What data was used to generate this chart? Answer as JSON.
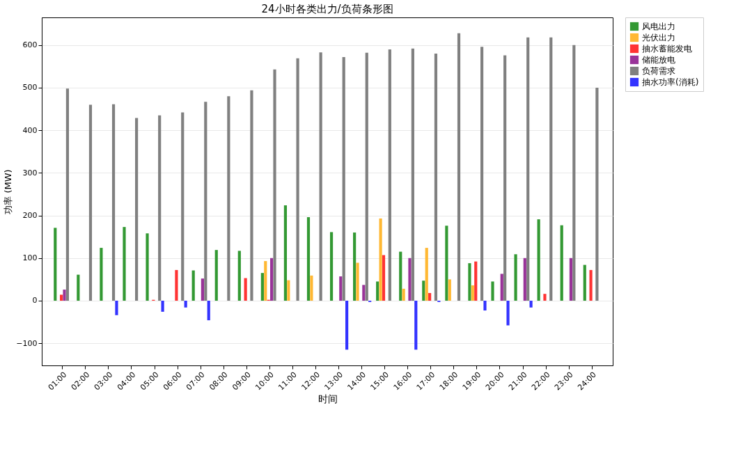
{
  "chart_data": {
    "type": "bar",
    "title": "24小时各类出力/负荷条形图",
    "xlabel": "时间",
    "ylabel": "功率 (MW)",
    "categories": [
      "01:00",
      "02:00",
      "03:00",
      "04:00",
      "05:00",
      "06:00",
      "07:00",
      "08:00",
      "09:00",
      "10:00",
      "11:00",
      "12:00",
      "13:00",
      "14:00",
      "15:00",
      "16:00",
      "17:00",
      "18:00",
      "19:00",
      "20:00",
      "21:00",
      "22:00",
      "23:00",
      "24:00"
    ],
    "series": [
      {
        "name": "风电出力",
        "color": "#339933",
        "values": [
          171,
          61,
          124,
          173,
          158,
          0,
          71,
          119,
          117,
          65,
          224,
          196,
          161,
          160,
          45,
          115,
          47,
          176,
          88,
          45,
          109,
          191,
          177,
          84
        ]
      },
      {
        "name": "光伏出力",
        "color": "#ffb833",
        "values": [
          0,
          0,
          0,
          0,
          0,
          0,
          0,
          0,
          0,
          93,
          48,
          59,
          0,
          89,
          193,
          28,
          124,
          50,
          36,
          0,
          0,
          0,
          0,
          0
        ]
      },
      {
        "name": "抽水蓄能发电",
        "color": "#ff3333",
        "values": [
          14,
          0,
          0,
          0,
          2,
          72,
          0,
          0,
          53,
          2,
          0,
          0,
          0,
          0,
          107,
          0,
          18,
          0,
          92,
          0,
          0,
          16,
          0,
          72
        ]
      },
      {
        "name": "储能放电",
        "color": "#993399",
        "values": [
          26,
          0,
          0,
          0,
          0,
          0,
          52,
          0,
          0,
          100,
          0,
          0,
          57,
          37,
          0,
          100,
          0,
          0,
          0,
          63,
          100,
          0,
          100,
          0
        ]
      },
      {
        "name": "负荷需求",
        "color": "#808080",
        "values": [
          498,
          460,
          461,
          429,
          435,
          442,
          467,
          480,
          494,
          543,
          569,
          583,
          572,
          582,
          590,
          592,
          580,
          628,
          596,
          576,
          618,
          618,
          600,
          500
        ]
      },
      {
        "name": "抽水功率(消耗)",
        "color": "#3333ff",
        "values": [
          0,
          0,
          -34,
          0,
          -26,
          -16,
          -46,
          0,
          0,
          0,
          0,
          0,
          -115,
          -3,
          0,
          -115,
          -3,
          0,
          -23,
          -58,
          -16,
          0,
          0,
          0
        ]
      }
    ],
    "ylim": [
      -152,
      665
    ],
    "yticks": [
      -100,
      0,
      100,
      200,
      300,
      400,
      500,
      600
    ],
    "grid": "y",
    "legend": "right"
  }
}
